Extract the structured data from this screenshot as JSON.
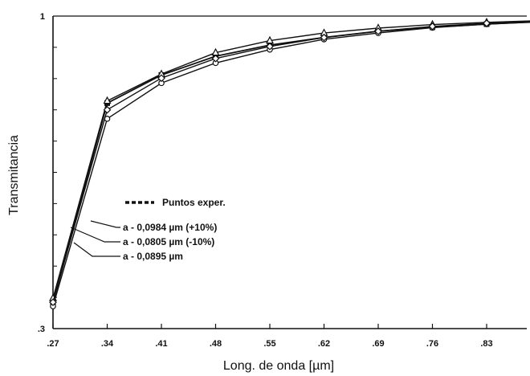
{
  "chart_data": {
    "type": "line",
    "xlabel": "Long. de onda [µm]",
    "ylabel": "Transmitancia",
    "x_ticks": [
      ".27",
      ".34",
      ".41",
      ".48",
      ".55",
      ".62",
      ".69",
      ".76",
      ".83"
    ],
    "y_ticks": [
      ".3",
      "1"
    ],
    "xlim": [
      0.27,
      0.9
    ],
    "ylim": [
      0.3,
      1.0
    ],
    "grid": false,
    "series": [
      {
        "name": "Puntos exper.",
        "marker": "square",
        "x": [
          0.27,
          0.34,
          0.41,
          0.48,
          0.55,
          0.62,
          0.69,
          0.76,
          0.83,
          0.9
        ],
        "y": [
          0.358,
          0.805,
          0.868,
          0.91,
          0.935,
          0.952,
          0.966,
          0.975,
          0.982,
          0.988
        ]
      },
      {
        "name": "a - 0,0984 µm (+10%)",
        "marker": "triangle",
        "x": [
          0.27,
          0.34,
          0.41,
          0.48,
          0.55,
          0.62,
          0.69,
          0.76,
          0.83,
          0.9
        ],
        "y": [
          0.368,
          0.81,
          0.87,
          0.918,
          0.945,
          0.962,
          0.973,
          0.981,
          0.986,
          0.99
        ]
      },
      {
        "name": "a - 0,0805 µm (-10%)",
        "marker": "circle",
        "x": [
          0.27,
          0.34,
          0.41,
          0.48,
          0.55,
          0.62,
          0.69,
          0.76,
          0.83,
          0.9
        ],
        "y": [
          0.35,
          0.77,
          0.85,
          0.895,
          0.925,
          0.948,
          0.962,
          0.974,
          0.982,
          0.987
        ]
      },
      {
        "name": "a - 0,0895 µm",
        "marker": "diamond",
        "x": [
          0.27,
          0.34,
          0.41,
          0.48,
          0.55,
          0.62,
          0.69,
          0.76,
          0.83,
          0.9
        ],
        "y": [
          0.359,
          0.79,
          0.861,
          0.905,
          0.932,
          0.952,
          0.966,
          0.977,
          0.984,
          0.988
        ]
      }
    ],
    "legend": {
      "placement": "center",
      "entries": [
        "Puntos exper.",
        "a - 0,0984 µm (+10%)",
        "a - 0,0805 µm (-10%)",
        "a - 0,0895 µm"
      ]
    }
  }
}
